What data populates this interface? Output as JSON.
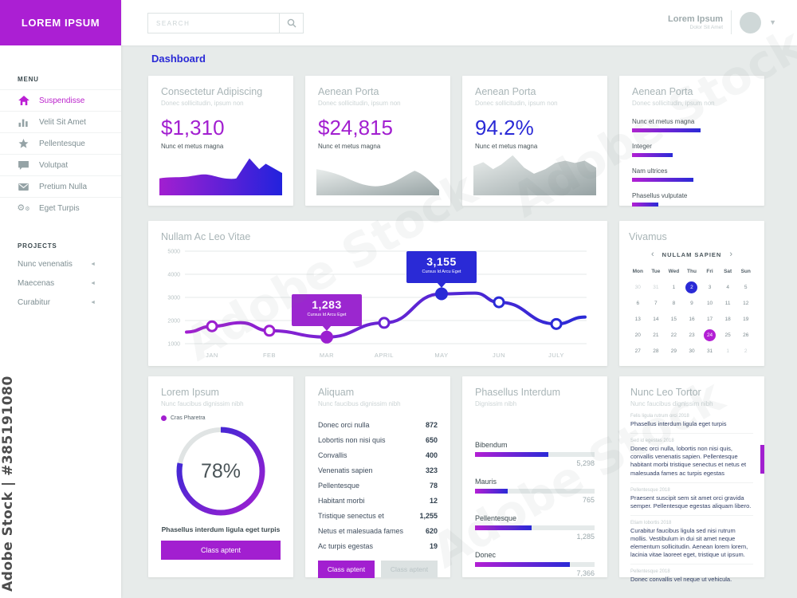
{
  "watermark": {
    "vertical": "Adobe Stock | #385191080",
    "diagonal": "Adobe Stock"
  },
  "brand": {
    "logo_text": "LOREM IPSUM",
    "color": "#ab1fd3"
  },
  "topbar": {
    "search_placeholder": "SEARCH",
    "user_name": "Lorem Ipsum",
    "user_subtitle": "Dolor Sit Amet"
  },
  "page_title": "Dashboard",
  "sidebar": {
    "menu_header": "MENU",
    "menu_items": [
      {
        "label": "Suspendisse",
        "icon": "home-icon",
        "active": true
      },
      {
        "label": "Velit Sit Amet",
        "icon": "bar-chart-icon",
        "active": false
      },
      {
        "label": "Pellentesque",
        "icon": "star-icon",
        "active": false
      },
      {
        "label": "Volutpat",
        "icon": "comment-icon",
        "active": false
      },
      {
        "label": "Pretium Nulla",
        "icon": "envelope-icon",
        "active": false
      },
      {
        "label": "Eget Turpis",
        "icon": "gears-icon",
        "active": false
      }
    ],
    "projects_header": "PROJECTS",
    "project_arrow": "◄",
    "project_items": [
      {
        "label": "Nunc venenatis"
      },
      {
        "label": "Maecenas"
      },
      {
        "label": "Curabitur"
      }
    ]
  },
  "stat_cards": [
    {
      "title": "Consectetur Adipiscing",
      "subtitle": "Donec sollicitudin, ipsum non",
      "value": "$1,310",
      "caption": "Nunc et metus magna"
    },
    {
      "title": "Aenean Porta",
      "subtitle": "Donec sollicitudin, ipsum non",
      "value": "$24,815",
      "caption": "Nunc et metus magna"
    },
    {
      "title": "Aenean Porta",
      "subtitle": "Donec sollicitudin, ipsum non",
      "value": "94.2%",
      "caption": "Nunc et metus magna"
    }
  ],
  "bar_card": {
    "title": "Aenean Porta",
    "subtitle": "Donec sollicitudin, ipsum non",
    "bars": [
      {
        "label": "Nunc et metus magna",
        "pct": 57
      },
      {
        "label": "Integer",
        "pct": 34
      },
      {
        "label": "Nam ultrices",
        "pct": 51
      },
      {
        "label": "Phasellus vulputate",
        "pct": 22
      }
    ]
  },
  "line_chart_card": {
    "title": "Nullam Ac Leo Vitae",
    "tooltips": [
      {
        "value": "1,283",
        "label": "Cursus Id Arcu Eget",
        "color": "#9b27cf"
      },
      {
        "value": "3,155",
        "label": "Cursus Id Arcu Eget",
        "color": "#2a2ad6"
      }
    ]
  },
  "calendar_card": {
    "title": "Vivamus",
    "nav_prev": "‹",
    "nav_next": "›",
    "nav_label": "NULLAM SAPIEN",
    "day_names": [
      "Mon",
      "Tue",
      "Wed",
      "Thu",
      "Fri",
      "Sat",
      "Sun"
    ],
    "weeks": [
      [
        {
          "t": "30",
          "m": true
        },
        {
          "t": "31",
          "m": true
        },
        {
          "t": "1"
        },
        {
          "t": "2",
          "s": "blue"
        },
        {
          "t": "3"
        },
        {
          "t": "4"
        },
        {
          "t": "5"
        }
      ],
      [
        {
          "t": "6"
        },
        {
          "t": "7"
        },
        {
          "t": "8"
        },
        {
          "t": "9"
        },
        {
          "t": "10"
        },
        {
          "t": "11"
        },
        {
          "t": "12"
        }
      ],
      [
        {
          "t": "13"
        },
        {
          "t": "14"
        },
        {
          "t": "15"
        },
        {
          "t": "16"
        },
        {
          "t": "17"
        },
        {
          "t": "18"
        },
        {
          "t": "19"
        }
      ],
      [
        {
          "t": "20"
        },
        {
          "t": "21"
        },
        {
          "t": "22"
        },
        {
          "t": "23"
        },
        {
          "t": "24",
          "s": "purple"
        },
        {
          "t": "25"
        },
        {
          "t": "26"
        }
      ],
      [
        {
          "t": "27"
        },
        {
          "t": "28"
        },
        {
          "t": "29"
        },
        {
          "t": "30"
        },
        {
          "t": "31"
        },
        {
          "t": "1",
          "m": true
        },
        {
          "t": "2",
          "m": true
        }
      ]
    ]
  },
  "donut_card": {
    "title": "Lorem Ipsum",
    "subtitle": "Nunc faucibus dignissim nibh",
    "legend": "Cras Pharetra",
    "percent": "78%",
    "caption": "Phasellus interdum ligula eget turpis",
    "button": "Class aptent"
  },
  "table_card": {
    "title": "Aliquam",
    "subtitle": "Nunc faucibus dignissim nibh",
    "rows": [
      [
        "Donec orci nulla",
        "872"
      ],
      [
        "Lobortis non nisi quis",
        "650"
      ],
      [
        "Convallis",
        "400"
      ],
      [
        "Venenatis sapien",
        "323"
      ],
      [
        "Pellentesque",
        "78"
      ],
      [
        "Habitant morbi",
        "12"
      ],
      [
        "Tristique senectus et",
        "1,255"
      ],
      [
        "Netus et malesuada fames",
        "620"
      ],
      [
        "Ac turpis egestas",
        "19"
      ]
    ],
    "buttons": [
      "Class aptent",
      "Class aptent"
    ]
  },
  "progress_card": {
    "title": "Phasellus Interdum",
    "subtitle": "Dignissim nibh",
    "items": [
      {
        "label": "Bibendum",
        "value": "5,298",
        "pct": 61
      },
      {
        "label": "Mauris",
        "value": "765",
        "pct": 27
      },
      {
        "label": "Pellentesque",
        "value": "1,285",
        "pct": 47
      },
      {
        "label": "Donec",
        "value": "7,366",
        "pct": 79
      }
    ]
  },
  "notes_card": {
    "title": "Nunc Leo Tortor",
    "subtitle": "Nunc faucibus dignissim nibh",
    "entries": [
      {
        "header": "Felis ligula rutrum orci 2018",
        "body": "Phasellus interdum ligula eget turpis"
      },
      {
        "header": "Sed id egestas 2018",
        "body": "Donec orci nulla, lobortis non nisi quis, convallis venenatis sapien. Pellentesque habitant morbi tristique senectus et netus et malesuada fames ac turpis egestas"
      },
      {
        "header": "Pellentesque 2018",
        "body": "Praesent suscipit sem sit amet orci gravida semper. Pellentesque egestas aliquam libero."
      },
      {
        "header": "Etiam lobortis 2018",
        "body": "Curabitur faucibus ligula sed nisi rutrum mollis. Vestibulum in dui sit amet neque elementum sollicitudin. Aenean lorem lorem, lacinia vitae laoreet eget, tristique ut ipsum."
      },
      {
        "header": "Pellentesque 2018",
        "body": "Donec convallis vel neque ut vehicula."
      }
    ]
  },
  "colors": {
    "accent_purple": "#a21fd0",
    "accent_blue": "#2a2ad6",
    "background": "#e7ebea"
  },
  "chart_data": [
    {
      "type": "area",
      "title": "Consectetur Adipiscing",
      "metric": "$1,310",
      "metric_label": "Nunc et metus magna",
      "style": "purple-blue-gradient"
    },
    {
      "type": "area",
      "title": "Aenean Porta",
      "metric": "$24,815",
      "metric_label": "Nunc et metus magna",
      "style": "gray-gradient"
    },
    {
      "type": "area",
      "title": "Aenean Porta",
      "metric": "94.2%",
      "metric_label": "Nunc et metus magna",
      "style": "gray-gradient"
    },
    {
      "type": "bar",
      "title": "Aenean Porta",
      "orientation": "horizontal",
      "categories": [
        "Nunc et metus magna",
        "Integer",
        "Nam ultrices",
        "Phasellus vulputate"
      ],
      "values_pct": [
        57,
        34,
        51,
        22
      ]
    },
    {
      "type": "line",
      "title": "Nullam Ac Leo Vitae",
      "x": [
        "JAN",
        "FEB",
        "MAR",
        "APRIL",
        "MAY",
        "JUN",
        "JULY"
      ],
      "values": [
        1750,
        1560,
        1283,
        1900,
        3155,
        2790,
        1850
      ],
      "ylim": [
        1000,
        5000
      ],
      "y_ticks": [
        5000,
        4000,
        3000,
        2000,
        1000
      ],
      "grid": true,
      "annotations": [
        {
          "x": "MAR",
          "value": "1,283",
          "label": "Cursus Id Arcu Eget"
        },
        {
          "x": "MAY",
          "value": "3,155",
          "label": "Cursus Id Arcu Eget"
        }
      ]
    },
    {
      "type": "pie",
      "title": "Lorem Ipsum",
      "center_label": "78%",
      "values": [
        78,
        22
      ],
      "legend": [
        "Cras Pharetra"
      ]
    },
    {
      "type": "table",
      "title": "Aliquam",
      "rows": [
        [
          "Donec orci nulla",
          872
        ],
        [
          "Lobortis non nisi quis",
          650
        ],
        [
          "Convallis",
          400
        ],
        [
          "Venenatis sapien",
          323
        ],
        [
          "Pellentesque",
          78
        ],
        [
          "Habitant morbi",
          12
        ],
        [
          "Tristique senectus et",
          1255
        ],
        [
          "Netus et malesuada fames",
          620
        ],
        [
          "Ac turpis egestas",
          19
        ]
      ]
    },
    {
      "type": "bar",
      "title": "Phasellus Interdum",
      "orientation": "horizontal",
      "categories": [
        "Bibendum",
        "Mauris",
        "Pellentesque",
        "Donec"
      ],
      "values": [
        5298,
        765,
        1285,
        7366
      ]
    }
  ]
}
